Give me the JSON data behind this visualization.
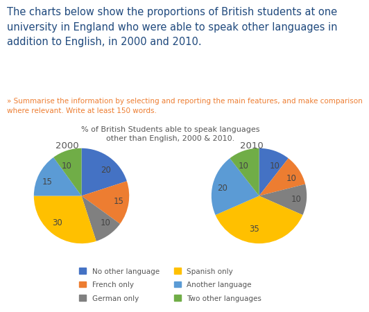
{
  "title_main": "The charts below show the proportions of British students at one\nuniversity in England who were able to speak other languages in\naddition to English, in 2000 and 2010.",
  "subtitle": "» Summarise the information by selecting and reporting the main features, and make comparison\nwhere relevant. Write at least 150 words.",
  "chart_title_line1": "% of British Students able to speak languages",
  "chart_title_line2": "other than English, 2000 & 2010.",
  "year_2000_label": "2000",
  "year_2010_label": "2010",
  "categories": [
    "No other language",
    "French only",
    "German only",
    "Spanish only",
    "Another language",
    "Two other languages"
  ],
  "colors": [
    "#4472C4",
    "#ED7D31",
    "#808080",
    "#FFC000",
    "#5B9BD5",
    "#70AD47"
  ],
  "values_2000": [
    20,
    15,
    10,
    30,
    15,
    10
  ],
  "values_2010": [
    10,
    10,
    10,
    35,
    20,
    10
  ],
  "labels_2000": [
    "20",
    "15",
    "10",
    "30",
    "15",
    "10"
  ],
  "labels_2010": [
    "10",
    "10",
    "10",
    "35",
    "20",
    "10"
  ],
  "bg_color": "#FFFFFF",
  "title_color": "#1F497D",
  "subtitle_color": "#ED7D31",
  "chart_title_color": "#555555",
  "legend_color": "#555555",
  "title_fontsize": 10.5,
  "subtitle_fontsize": 7.5,
  "chart_title_fontsize": 8.0,
  "year_fontsize": 9.5,
  "label_fontsize": 8.5,
  "legend_fontsize": 7.5
}
